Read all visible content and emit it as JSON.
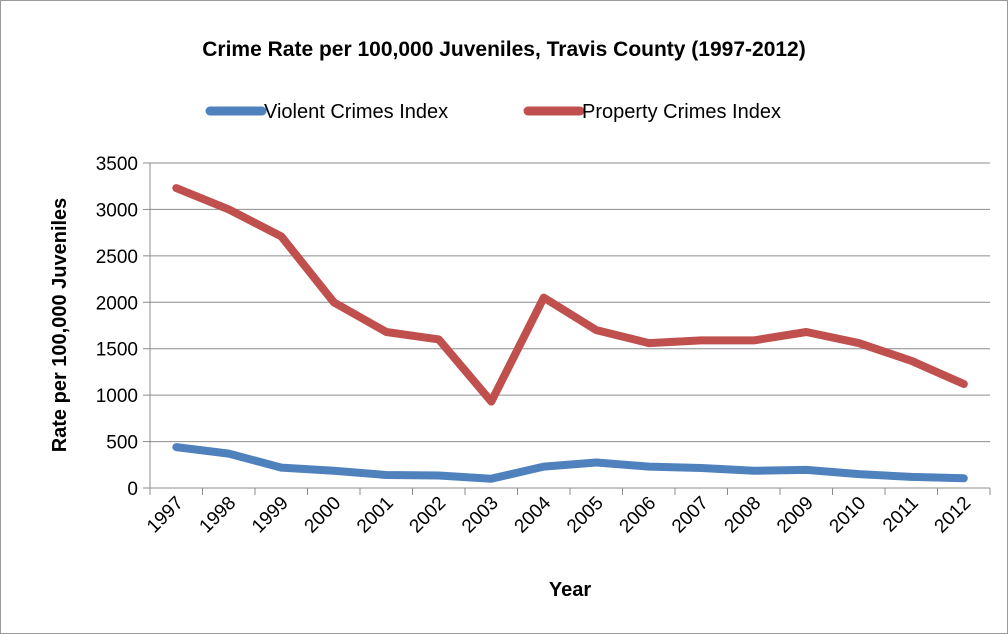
{
  "chart_data": {
    "type": "line",
    "title": "Crime Rate per 100,000 Juveniles, Travis County (1997-2012)",
    "xlabel": "Year",
    "ylabel": "Rate per 100,000 Juveniles",
    "x": [
      "1997",
      "1998",
      "1999",
      "2000",
      "2001",
      "2002",
      "2003",
      "2004",
      "2005",
      "2006",
      "2007",
      "2008",
      "2009",
      "2010",
      "2011",
      "2012"
    ],
    "ylim": [
      0,
      3500
    ],
    "yticks": [
      0,
      500,
      1000,
      1500,
      2000,
      2500,
      3000,
      3500
    ],
    "ytick_labels": [
      "0",
      "500",
      "1000",
      "1500",
      "2000",
      "2500",
      "3000",
      "3500"
    ],
    "grid": true,
    "legend_position": "top",
    "series": [
      {
        "name": "Violent Crimes Index",
        "color": "#4f81bd",
        "values": [
          440,
          370,
          220,
          185,
          140,
          135,
          100,
          230,
          275,
          230,
          215,
          185,
          195,
          150,
          120,
          105
        ]
      },
      {
        "name": "Property Crimes Index",
        "color": "#c0504d",
        "values": [
          3230,
          3000,
          2710,
          2000,
          1680,
          1600,
          930,
          2050,
          1700,
          1560,
          1590,
          1590,
          1680,
          1560,
          1370,
          1120
        ]
      }
    ]
  }
}
